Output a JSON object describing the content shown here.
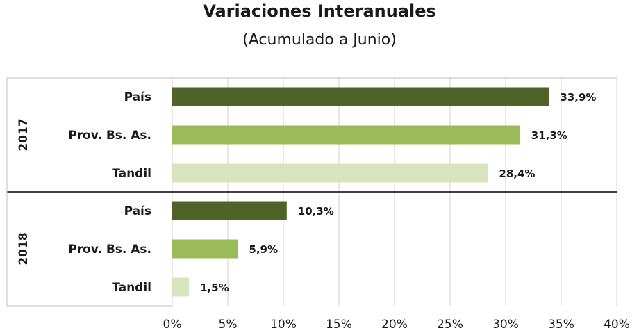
{
  "chart_data": {
    "type": "bar",
    "orientation": "horizontal",
    "title": "Variaciones Interanuales",
    "subtitle": "(Acumulado a Junio)",
    "xlim": [
      0,
      40
    ],
    "x_ticks": [
      "0%",
      "5%",
      "10%",
      "15%",
      "20%",
      "25%",
      "30%",
      "35%",
      "40%"
    ],
    "grid": "vertical",
    "groups": [
      {
        "name": "2017",
        "bars": [
          {
            "category": "País",
            "value": 33.9,
            "label": "33,9%",
            "color": "#4f6228"
          },
          {
            "category": "Prov. Bs. As.",
            "value": 31.3,
            "label": "31,3%",
            "color": "#9bbb59"
          },
          {
            "category": "Tandil",
            "value": 28.4,
            "label": "28,4%",
            "color": "#d7e4bd"
          }
        ]
      },
      {
        "name": "2018",
        "bars": [
          {
            "category": "País",
            "value": 10.3,
            "label": "10,3%",
            "color": "#4f6228"
          },
          {
            "category": "Prov. Bs. As.",
            "value": 5.9,
            "label": "5,9%",
            "color": "#9bbb59"
          },
          {
            "category": "Tandil",
            "value": 1.5,
            "label": "1,5%",
            "color": "#d7e4bd"
          }
        ]
      }
    ]
  }
}
